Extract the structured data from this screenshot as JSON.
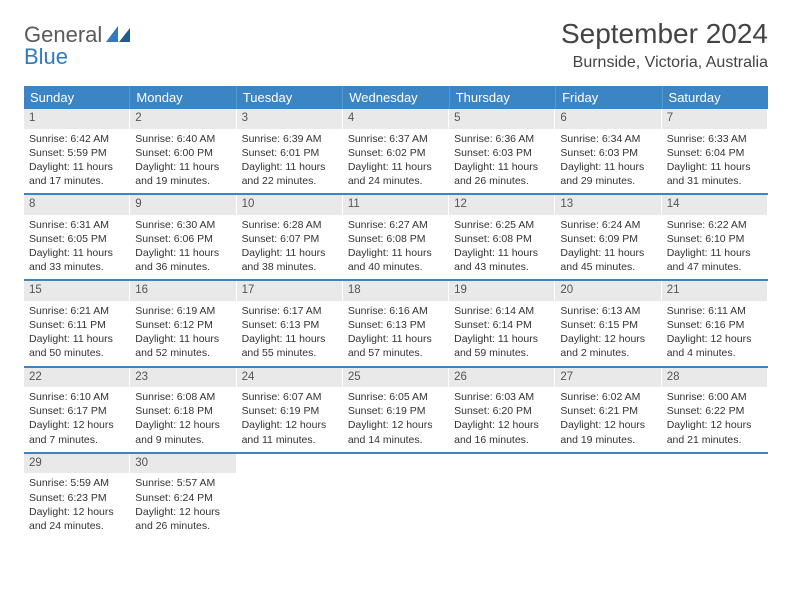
{
  "logo": {
    "general": "General",
    "blue": "Blue"
  },
  "title": "September 2024",
  "location": "Burnside, Victoria, Australia",
  "colors": {
    "header_bar": "#3b85c4",
    "header_text": "#ffffff",
    "day_band": "#e9e9e9",
    "text": "#333333",
    "logo_blue": "#2f7ac0",
    "logo_gray": "#5a5a5a",
    "row_divider": "#3b85c4"
  },
  "typography": {
    "title_fontsize_pt": 21,
    "location_fontsize_pt": 12,
    "weekday_fontsize_pt": 10,
    "daynum_fontsize_pt": 9,
    "detail_fontsize_pt": 8
  },
  "layout": {
    "columns": 7,
    "rows": 5
  },
  "weekdays": [
    "Sunday",
    "Monday",
    "Tuesday",
    "Wednesday",
    "Thursday",
    "Friday",
    "Saturday"
  ],
  "weeks": [
    [
      {
        "num": "1",
        "sunrise": "Sunrise: 6:42 AM",
        "sunset": "Sunset: 5:59 PM",
        "d1": "Daylight: 11 hours",
        "d2": "and 17 minutes."
      },
      {
        "num": "2",
        "sunrise": "Sunrise: 6:40 AM",
        "sunset": "Sunset: 6:00 PM",
        "d1": "Daylight: 11 hours",
        "d2": "and 19 minutes."
      },
      {
        "num": "3",
        "sunrise": "Sunrise: 6:39 AM",
        "sunset": "Sunset: 6:01 PM",
        "d1": "Daylight: 11 hours",
        "d2": "and 22 minutes."
      },
      {
        "num": "4",
        "sunrise": "Sunrise: 6:37 AM",
        "sunset": "Sunset: 6:02 PM",
        "d1": "Daylight: 11 hours",
        "d2": "and 24 minutes."
      },
      {
        "num": "5",
        "sunrise": "Sunrise: 6:36 AM",
        "sunset": "Sunset: 6:03 PM",
        "d1": "Daylight: 11 hours",
        "d2": "and 26 minutes."
      },
      {
        "num": "6",
        "sunrise": "Sunrise: 6:34 AM",
        "sunset": "Sunset: 6:03 PM",
        "d1": "Daylight: 11 hours",
        "d2": "and 29 minutes."
      },
      {
        "num": "7",
        "sunrise": "Sunrise: 6:33 AM",
        "sunset": "Sunset: 6:04 PM",
        "d1": "Daylight: 11 hours",
        "d2": "and 31 minutes."
      }
    ],
    [
      {
        "num": "8",
        "sunrise": "Sunrise: 6:31 AM",
        "sunset": "Sunset: 6:05 PM",
        "d1": "Daylight: 11 hours",
        "d2": "and 33 minutes."
      },
      {
        "num": "9",
        "sunrise": "Sunrise: 6:30 AM",
        "sunset": "Sunset: 6:06 PM",
        "d1": "Daylight: 11 hours",
        "d2": "and 36 minutes."
      },
      {
        "num": "10",
        "sunrise": "Sunrise: 6:28 AM",
        "sunset": "Sunset: 6:07 PM",
        "d1": "Daylight: 11 hours",
        "d2": "and 38 minutes."
      },
      {
        "num": "11",
        "sunrise": "Sunrise: 6:27 AM",
        "sunset": "Sunset: 6:08 PM",
        "d1": "Daylight: 11 hours",
        "d2": "and 40 minutes."
      },
      {
        "num": "12",
        "sunrise": "Sunrise: 6:25 AM",
        "sunset": "Sunset: 6:08 PM",
        "d1": "Daylight: 11 hours",
        "d2": "and 43 minutes."
      },
      {
        "num": "13",
        "sunrise": "Sunrise: 6:24 AM",
        "sunset": "Sunset: 6:09 PM",
        "d1": "Daylight: 11 hours",
        "d2": "and 45 minutes."
      },
      {
        "num": "14",
        "sunrise": "Sunrise: 6:22 AM",
        "sunset": "Sunset: 6:10 PM",
        "d1": "Daylight: 11 hours",
        "d2": "and 47 minutes."
      }
    ],
    [
      {
        "num": "15",
        "sunrise": "Sunrise: 6:21 AM",
        "sunset": "Sunset: 6:11 PM",
        "d1": "Daylight: 11 hours",
        "d2": "and 50 minutes."
      },
      {
        "num": "16",
        "sunrise": "Sunrise: 6:19 AM",
        "sunset": "Sunset: 6:12 PM",
        "d1": "Daylight: 11 hours",
        "d2": "and 52 minutes."
      },
      {
        "num": "17",
        "sunrise": "Sunrise: 6:17 AM",
        "sunset": "Sunset: 6:13 PM",
        "d1": "Daylight: 11 hours",
        "d2": "and 55 minutes."
      },
      {
        "num": "18",
        "sunrise": "Sunrise: 6:16 AM",
        "sunset": "Sunset: 6:13 PM",
        "d1": "Daylight: 11 hours",
        "d2": "and 57 minutes."
      },
      {
        "num": "19",
        "sunrise": "Sunrise: 6:14 AM",
        "sunset": "Sunset: 6:14 PM",
        "d1": "Daylight: 11 hours",
        "d2": "and 59 minutes."
      },
      {
        "num": "20",
        "sunrise": "Sunrise: 6:13 AM",
        "sunset": "Sunset: 6:15 PM",
        "d1": "Daylight: 12 hours",
        "d2": "and 2 minutes."
      },
      {
        "num": "21",
        "sunrise": "Sunrise: 6:11 AM",
        "sunset": "Sunset: 6:16 PM",
        "d1": "Daylight: 12 hours",
        "d2": "and 4 minutes."
      }
    ],
    [
      {
        "num": "22",
        "sunrise": "Sunrise: 6:10 AM",
        "sunset": "Sunset: 6:17 PM",
        "d1": "Daylight: 12 hours",
        "d2": "and 7 minutes."
      },
      {
        "num": "23",
        "sunrise": "Sunrise: 6:08 AM",
        "sunset": "Sunset: 6:18 PM",
        "d1": "Daylight: 12 hours",
        "d2": "and 9 minutes."
      },
      {
        "num": "24",
        "sunrise": "Sunrise: 6:07 AM",
        "sunset": "Sunset: 6:19 PM",
        "d1": "Daylight: 12 hours",
        "d2": "and 11 minutes."
      },
      {
        "num": "25",
        "sunrise": "Sunrise: 6:05 AM",
        "sunset": "Sunset: 6:19 PM",
        "d1": "Daylight: 12 hours",
        "d2": "and 14 minutes."
      },
      {
        "num": "26",
        "sunrise": "Sunrise: 6:03 AM",
        "sunset": "Sunset: 6:20 PM",
        "d1": "Daylight: 12 hours",
        "d2": "and 16 minutes."
      },
      {
        "num": "27",
        "sunrise": "Sunrise: 6:02 AM",
        "sunset": "Sunset: 6:21 PM",
        "d1": "Daylight: 12 hours",
        "d2": "and 19 minutes."
      },
      {
        "num": "28",
        "sunrise": "Sunrise: 6:00 AM",
        "sunset": "Sunset: 6:22 PM",
        "d1": "Daylight: 12 hours",
        "d2": "and 21 minutes."
      }
    ],
    [
      {
        "num": "29",
        "sunrise": "Sunrise: 5:59 AM",
        "sunset": "Sunset: 6:23 PM",
        "d1": "Daylight: 12 hours",
        "d2": "and 24 minutes."
      },
      {
        "num": "30",
        "sunrise": "Sunrise: 5:57 AM",
        "sunset": "Sunset: 6:24 PM",
        "d1": "Daylight: 12 hours",
        "d2": "and 26 minutes."
      },
      null,
      null,
      null,
      null,
      null
    ]
  ]
}
